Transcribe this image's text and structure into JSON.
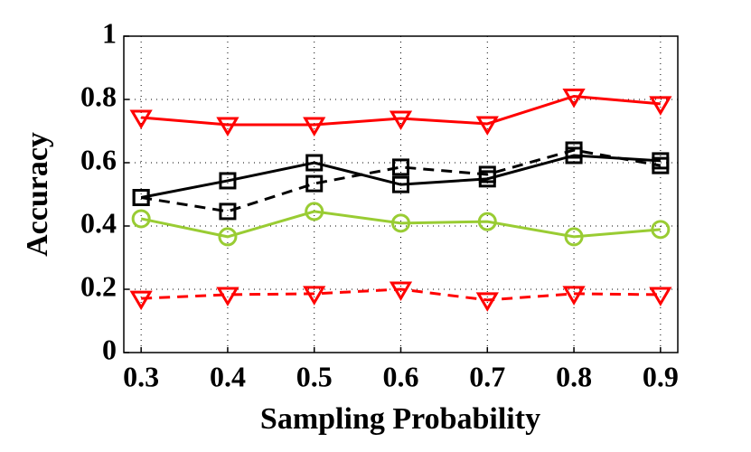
{
  "chart_data": {
    "type": "line",
    "x_label": "Sampling Probability",
    "y_label": "Accuracy",
    "x": [
      0.3,
      0.4,
      0.5,
      0.6,
      0.7,
      0.8,
      0.9
    ],
    "series": [
      {
        "color": "#ff0000",
        "dash": false,
        "marker": "triangle-down",
        "values": [
          0.743,
          0.72,
          0.72,
          0.74,
          0.723,
          0.81,
          0.786
        ]
      },
      {
        "color": "#000000",
        "dash": false,
        "marker": "square",
        "values": [
          0.49,
          0.543,
          0.6,
          0.531,
          0.549,
          0.623,
          0.606
        ]
      },
      {
        "color": "#000000",
        "dash": true,
        "marker": "square",
        "values": [
          0.49,
          0.446,
          0.534,
          0.586,
          0.563,
          0.64,
          0.591
        ]
      },
      {
        "color": "#99cc33",
        "dash": false,
        "marker": "circle",
        "values": [
          0.423,
          0.366,
          0.446,
          0.409,
          0.414,
          0.366,
          0.389
        ]
      },
      {
        "color": "#ff0000",
        "dash": true,
        "marker": "triangle-down",
        "values": [
          0.171,
          0.183,
          0.186,
          0.2,
          0.166,
          0.186,
          0.183
        ]
      }
    ],
    "xlim": [
      0.28,
      0.92
    ],
    "xticks": [
      0.3,
      0.4,
      0.5,
      0.6,
      0.7,
      0.8,
      0.9
    ],
    "ylim": [
      0,
      1
    ],
    "yticks": [
      0,
      0.2,
      0.4,
      0.6,
      0.8,
      1
    ],
    "grid": true
  }
}
